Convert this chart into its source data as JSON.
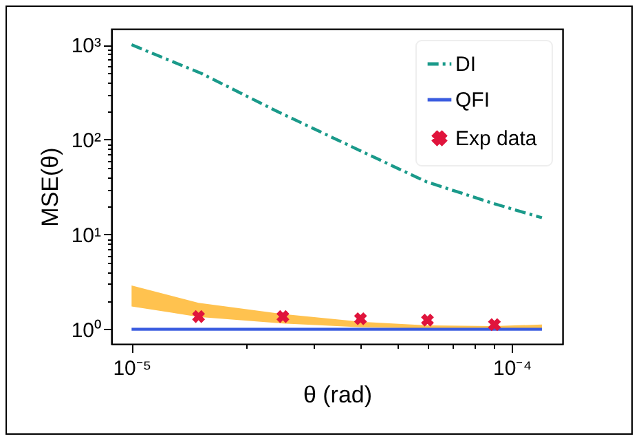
{
  "chart_data": {
    "type": "line",
    "xlabel": "θ (rad)",
    "ylabel": "MSE(θ)",
    "log": "xy",
    "grid": false,
    "legend": "top right",
    "xlim": [
      8.85e-06,
      0.000136
    ],
    "ylim": [
      0.7,
      1470
    ],
    "xticks": [
      {
        "value": 1e-05,
        "label": "10⁻⁵"
      },
      {
        "value": 2e-05,
        "label": null
      },
      {
        "value": 3e-05,
        "label": null
      },
      {
        "value": 4e-05,
        "label": null
      },
      {
        "value": 5e-05,
        "label": null
      },
      {
        "value": 6e-05,
        "label": null
      },
      {
        "value": 7e-05,
        "label": null
      },
      {
        "value": 8e-05,
        "label": null
      },
      {
        "value": 9e-05,
        "label": null
      },
      {
        "value": 0.0001,
        "label": "10⁻⁴"
      }
    ],
    "yticks": [
      {
        "value": 1,
        "label": "10⁰"
      },
      {
        "value": 2,
        "label": null
      },
      {
        "value": 3,
        "label": null
      },
      {
        "value": 4,
        "label": null
      },
      {
        "value": 5,
        "label": null
      },
      {
        "value": 6,
        "label": null
      },
      {
        "value": 7,
        "label": null
      },
      {
        "value": 8,
        "label": null
      },
      {
        "value": 9,
        "label": null
      },
      {
        "value": 10,
        "label": "10¹"
      },
      {
        "value": 20,
        "label": null
      },
      {
        "value": 30,
        "label": null
      },
      {
        "value": 40,
        "label": null
      },
      {
        "value": 50,
        "label": null
      },
      {
        "value": 60,
        "label": null
      },
      {
        "value": 70,
        "label": null
      },
      {
        "value": 80,
        "label": null
      },
      {
        "value": 90,
        "label": null
      },
      {
        "value": 100,
        "label": "10²"
      },
      {
        "value": 200,
        "label": null
      },
      {
        "value": 300,
        "label": null
      },
      {
        "value": 400,
        "label": null
      },
      {
        "value": 500,
        "label": null
      },
      {
        "value": 600,
        "label": null
      },
      {
        "value": 700,
        "label": null
      },
      {
        "value": 800,
        "label": null
      },
      {
        "value": 900,
        "label": null
      },
      {
        "value": 1000,
        "label": "10³"
      }
    ],
    "series": [
      {
        "type": "area",
        "color": "#ffc24f",
        "x": [
          1e-05,
          1.5e-05,
          2.5e-05,
          4e-05,
          6e-05,
          9e-05,
          0.00012
        ],
        "values": [
          null,
          null,
          null,
          null,
          null,
          null,
          null
        ],
        "lower": [
          1.74,
          1.35,
          1.15,
          1.05,
          1.02,
          1.02,
          1.03
        ],
        "upper": [
          2.9,
          1.9,
          1.45,
          1.2,
          1.1,
          1.08,
          1.12
        ]
      },
      {
        "name": "DI",
        "line_style": "dashdot",
        "color": "#1a9a8a",
        "x": [
          1e-05,
          1.53e-05,
          2.38e-05,
          4.03e-05,
          5.95e-05,
          9.02e-05,
          0.00012
        ],
        "values": [
          1000,
          496,
          204,
          75,
          36,
          21,
          15
        ]
      },
      {
        "name": "QFI",
        "line_style": "solid",
        "color": "#3b5de0",
        "x": [
          1e-05,
          0.00012
        ],
        "values": [
          1,
          1
        ]
      },
      {
        "name": "Exp data",
        "type": "scatter",
        "marker": "cross",
        "color": "#e0143c",
        "x": [
          1.5e-05,
          2.5e-05,
          4e-05,
          6e-05,
          9e-05
        ],
        "values": [
          1.36,
          1.36,
          1.29,
          1.25,
          1.12
        ]
      }
    ]
  }
}
